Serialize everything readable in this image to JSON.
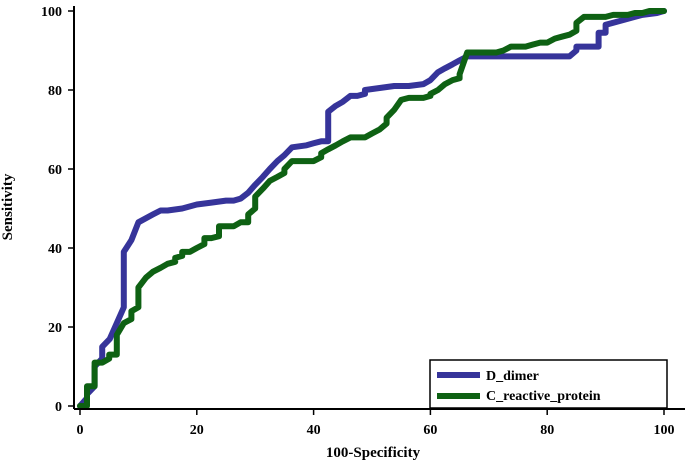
{
  "chart_data": {
    "type": "line",
    "title": "",
    "xlabel": "100-Specificity",
    "ylabel": "Sensitivity",
    "xlim": [
      0,
      100
    ],
    "ylim": [
      0,
      100
    ],
    "xticks": [
      0,
      20,
      40,
      60,
      80,
      100
    ],
    "yticks": [
      0,
      20,
      40,
      60,
      80,
      100
    ],
    "grid": false,
    "legend_position": "bottom-right",
    "series": [
      {
        "name": "D_dimer",
        "color": "#36349a",
        "x": [
          0,
          1.2,
          1.2,
          2.5,
          2.5,
          3.8,
          3.8,
          5.1,
          6.3,
          7.5,
          7.5,
          8.8,
          10,
          12.5,
          13.8,
          15,
          17.5,
          20,
          22.5,
          25,
          26.3,
          27.5,
          28.8,
          30,
          31.3,
          32.5,
          33.8,
          35,
          36.3,
          38.8,
          40,
          41.3,
          42.5,
          42.5,
          43.8,
          45,
          46.3,
          47.5,
          48.8,
          48.8,
          51.3,
          53.8,
          56.3,
          58.8,
          60,
          61.3,
          62.5,
          63.8,
          65,
          66.3,
          67.5,
          70,
          75,
          80,
          82.5,
          83.8,
          85,
          85,
          86.3,
          87.5,
          88.8,
          88.8,
          90,
          90,
          92.5,
          95,
          96.3,
          98.8,
          100
        ],
        "y": [
          0,
          2,
          3,
          5,
          10,
          12,
          15,
          17,
          21,
          25,
          39,
          42,
          46.5,
          48.5,
          49.5,
          49.5,
          50,
          51,
          51.5,
          52,
          52,
          52.5,
          54,
          56,
          58,
          60,
          62,
          63.5,
          65.5,
          66,
          66.5,
          67,
          67,
          74.5,
          76,
          77,
          78.5,
          78.5,
          79,
          80,
          80.5,
          81,
          81,
          81.5,
          82.5,
          84.5,
          85.5,
          86.5,
          87.5,
          88.5,
          88.5,
          88.5,
          88.5,
          88.5,
          88.5,
          88.5,
          90,
          91,
          91,
          91,
          91,
          94.5,
          94.5,
          96.5,
          97.5,
          98.5,
          99,
          99.5,
          100
        ]
      },
      {
        "name": "C_reactive_protein",
        "color": "#0e6113",
        "x": [
          0,
          1.2,
          1.2,
          2.5,
          2.5,
          3.8,
          5,
          5,
          6.3,
          6.3,
          7.5,
          8.8,
          8.8,
          10,
          10,
          11.3,
          12.5,
          13.8,
          15,
          16.3,
          16.3,
          17.5,
          17.5,
          18.8,
          20,
          21.3,
          21.3,
          22.5,
          23.8,
          23.8,
          25,
          26.3,
          27.5,
          28.8,
          28.8,
          30,
          30,
          31.3,
          32.5,
          33.8,
          35,
          35,
          36.3,
          37.5,
          38.8,
          40,
          41.3,
          41.3,
          42.5,
          43.8,
          45,
          46.3,
          47.5,
          48.8,
          50,
          51.3,
          52.5,
          52.5,
          53.8,
          55,
          56.3,
          57.5,
          58.8,
          60,
          60,
          61.3,
          62.5,
          63.8,
          65,
          65,
          66.3,
          67.5,
          68.8,
          70,
          71.3,
          72.5,
          73.8,
          75,
          76.3,
          77.5,
          78.8,
          80,
          81.3,
          82.5,
          83.8,
          85,
          85,
          86.3,
          87.5,
          88.8,
          90,
          91.3,
          92.5,
          93.8,
          95,
          96.3,
          97.5,
          98.8,
          100
        ],
        "y": [
          0,
          0,
          5,
          5,
          11,
          11,
          12,
          13,
          13,
          18,
          21,
          22,
          24,
          25,
          30,
          32.5,
          34,
          35,
          36,
          36.5,
          37.5,
          38,
          39,
          39,
          40,
          41,
          42.5,
          42.5,
          43,
          45.5,
          45.5,
          45.5,
          46.5,
          46.5,
          48.5,
          50,
          53,
          55,
          57,
          58,
          59,
          60,
          62,
          62,
          62,
          62,
          63,
          64,
          65,
          66,
          67,
          68,
          68,
          68,
          69,
          70,
          71.5,
          73,
          75,
          77.5,
          78,
          78,
          78,
          78.5,
          79,
          80,
          81.5,
          82.5,
          83,
          84,
          89.5,
          89.5,
          89.5,
          89.5,
          89.5,
          90,
          91,
          91,
          91,
          91.5,
          92,
          92,
          93,
          93.5,
          94,
          95,
          97,
          98.5,
          98.5,
          98.5,
          98.5,
          99,
          99,
          99,
          99.5,
          99.5,
          100,
          100,
          100
        ]
      }
    ]
  }
}
